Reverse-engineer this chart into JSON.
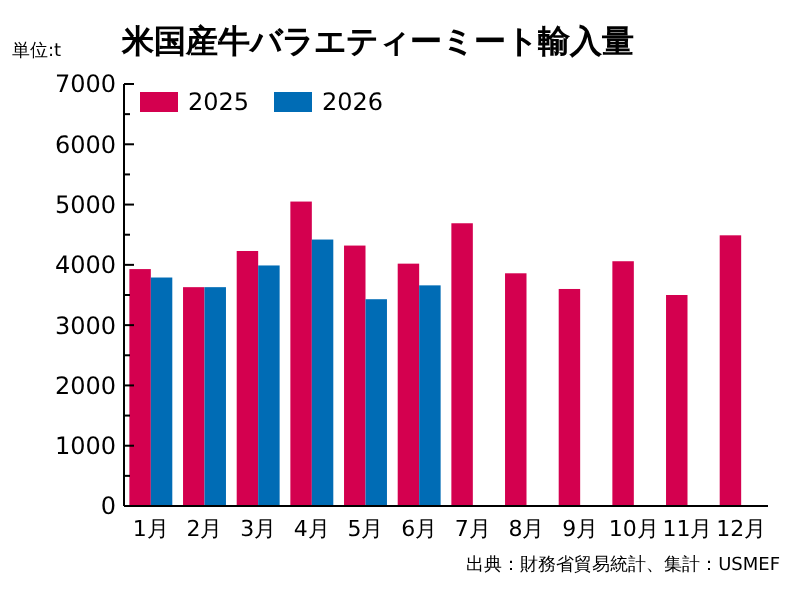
{
  "chart_data": {
    "type": "bar",
    "title": "米国産牛バラエティーミート輸入量",
    "ylabel": "単位:t",
    "categories": [
      "1月",
      "2月",
      "3月",
      "4月",
      "5月",
      "6月",
      "7月",
      "8月",
      "9月",
      "10月",
      "11月",
      "12月"
    ],
    "series": [
      {
        "name": "2025",
        "color": "#d4004f",
        "values": [
          3930,
          3630,
          4230,
          5050,
          4320,
          4020,
          4690,
          3860,
          3600,
          4060,
          3500,
          4490
        ]
      },
      {
        "name": "2026",
        "color": "#006cb5",
        "values": [
          3790,
          3630,
          3990,
          4420,
          3430,
          3660,
          null,
          null,
          null,
          null,
          null,
          null
        ]
      }
    ],
    "ylim": [
      0,
      7000
    ],
    "yticks": [
      0,
      {
        "value": 500,
        "label": null
      },
      1000,
      {
        "value": 1500,
        "label": null
      },
      2000,
      {
        "value": 2500,
        "label": null
      },
      3000,
      {
        "value": 3500,
        "label": null
      },
      4000,
      {
        "value": 4500,
        "label": null
      },
      5000,
      {
        "value": 5500,
        "label": null
      },
      6000,
      {
        "value": 6500,
        "label": null
      },
      7000
    ],
    "legend": "top left",
    "annotations": [
      "出典：財務省貿易統計、集計：USMEF"
    ]
  }
}
